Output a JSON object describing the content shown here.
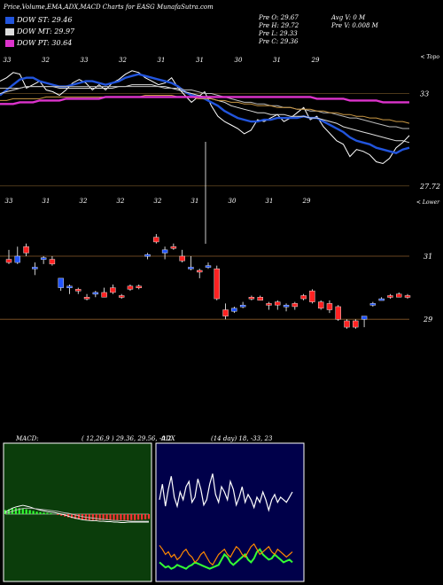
{
  "header": {
    "title": "Price,Volume,EMA,ADX,MACD Charts for EASG MunafaSutra.com",
    "legend": [
      {
        "label": "DOW ST: 29.46",
        "color": "#2255dd"
      },
      {
        "label": "DOW MT: 29.97",
        "color": "#dddddd"
      },
      {
        "label": "DOW PT: 30.64",
        "color": "#dd33cc"
      }
    ],
    "ohlc": {
      "open": "Pre  O: 29.67",
      "high": "Pre  H: 29.72",
      "low": "Pre  L: 29.33",
      "close": "Pre  C: 29.36"
    },
    "avg_vol": "Avg V: 0  M",
    "pre_vol": "Pre  V: 0.008  M"
  },
  "chart_data": [
    {
      "type": "line",
      "name": "ema-panel",
      "corner_label": "< Topo",
      "top_labels": [
        "33",
        "32",
        "33",
        "32",
        "31",
        "31",
        "30",
        "31",
        "29"
      ],
      "price_labels": [
        {
          "text": "33",
          "value": 33
        },
        {
          "text": "27.72",
          "value": 27.72
        }
      ],
      "bottom_labels": [
        "33",
        "31",
        "32",
        "32",
        "32",
        "31",
        "30",
        "31",
        "29"
      ],
      "ylim": [
        26.8,
        35.2
      ],
      "series": [
        {
          "name": "",
          "color": "#ffffff",
          "values": [
            33.7,
            33.9,
            34.2,
            34.1,
            33.3,
            33.5,
            33.7,
            33.2,
            33.1,
            32.9,
            33.2,
            33.6,
            33.8,
            33.6,
            33.2,
            33.5,
            33.2,
            33.6,
            33.8,
            34.1,
            34.3,
            34.2,
            33.9,
            33.7,
            33.5,
            33.6,
            33.9,
            33.3,
            32.9,
            32.5,
            32.8,
            33.1,
            32.3,
            31.7,
            31.4,
            31.2,
            31.0,
            30.7,
            30.9,
            31.5,
            31.4,
            31.6,
            31.8,
            31.4,
            31.6,
            31.9,
            32.2,
            31.5,
            31.7,
            31.1,
            30.7,
            30.3,
            30.1,
            29.4,
            29.8,
            29.7,
            29.5,
            29.1,
            29.0,
            29.3,
            29.9,
            30.2,
            30.6
          ]
        },
        {
          "name": "",
          "color": "#2255dd",
          "values": [
            32.9,
            33.2,
            33.5,
            33.8,
            33.9,
            33.9,
            33.7,
            33.6,
            33.5,
            33.4,
            33.4,
            33.5,
            33.6,
            33.7,
            33.7,
            33.6,
            33.5,
            33.6,
            33.7,
            33.9,
            34.0,
            34.1,
            34.0,
            33.9,
            33.8,
            33.7,
            33.6,
            33.4,
            33.1,
            32.9,
            32.8,
            32.7,
            32.5,
            32.3,
            32.0,
            31.8,
            31.6,
            31.5,
            31.4,
            31.4,
            31.5,
            31.5,
            31.6,
            31.6,
            31.6,
            31.6,
            31.7,
            31.6,
            31.6,
            31.4,
            31.2,
            31.0,
            30.8,
            30.5,
            30.3,
            30.2,
            30.1,
            29.9,
            29.8,
            29.7,
            29.6,
            29.8,
            29.9
          ]
        },
        {
          "name": "",
          "color": "#dddddd",
          "values": [
            33.0,
            33.1,
            33.2,
            33.3,
            33.4,
            33.4,
            33.4,
            33.4,
            33.4,
            33.3,
            33.3,
            33.3,
            33.3,
            33.3,
            33.3,
            33.3,
            33.3,
            33.3,
            33.4,
            33.4,
            33.5,
            33.5,
            33.5,
            33.5,
            33.4,
            33.4,
            33.3,
            33.2,
            33.1,
            33.0,
            32.9,
            32.8,
            32.7,
            32.6,
            32.5,
            32.3,
            32.2,
            32.1,
            32.0,
            31.9,
            31.9,
            31.8,
            31.8,
            31.8,
            31.7,
            31.7,
            31.7,
            31.6,
            31.6,
            31.5,
            31.4,
            31.3,
            31.1,
            31.0,
            30.9,
            30.8,
            30.7,
            30.6,
            30.5,
            30.4,
            30.3,
            30.3,
            30.2
          ]
        },
        {
          "name": "",
          "color": "#bbbbbb",
          "values": [
            33.3,
            33.3,
            33.3,
            33.3,
            33.4,
            33.4,
            33.4,
            33.4,
            33.4,
            33.4,
            33.4,
            33.4,
            33.4,
            33.4,
            33.4,
            33.4,
            33.4,
            33.4,
            33.4,
            33.4,
            33.4,
            33.4,
            33.4,
            33.4,
            33.4,
            33.3,
            33.3,
            33.3,
            33.2,
            33.2,
            33.1,
            33.0,
            33.0,
            32.9,
            32.8,
            32.7,
            32.6,
            32.5,
            32.5,
            32.4,
            32.4,
            32.3,
            32.3,
            32.2,
            32.2,
            32.1,
            32.1,
            32.0,
            32.0,
            31.9,
            31.9,
            31.8,
            31.7,
            31.6,
            31.6,
            31.5,
            31.4,
            31.3,
            31.2,
            31.1,
            31.1,
            31.0,
            31.0
          ]
        },
        {
          "name": "",
          "color": "#cc9944",
          "values": [
            32.6,
            32.6,
            32.7,
            32.7,
            32.7,
            32.7,
            32.7,
            32.8,
            32.8,
            32.8,
            32.8,
            32.8,
            32.8,
            32.8,
            32.8,
            32.8,
            32.8,
            32.8,
            32.8,
            32.8,
            32.8,
            32.8,
            32.9,
            32.9,
            32.9,
            32.9,
            32.9,
            32.8,
            32.8,
            32.8,
            32.7,
            32.7,
            32.7,
            32.6,
            32.6,
            32.5,
            32.5,
            32.4,
            32.4,
            32.3,
            32.3,
            32.3,
            32.2,
            32.2,
            32.2,
            32.1,
            32.1,
            32.1,
            32.0,
            32.0,
            31.9,
            31.9,
            31.8,
            31.8,
            31.7,
            31.7,
            31.6,
            31.6,
            31.5,
            31.5,
            31.4,
            31.4,
            31.3
          ]
        },
        {
          "name": "",
          "color": "#dd33cc",
          "values": [
            32.4,
            32.4,
            32.4,
            32.5,
            32.5,
            32.5,
            32.6,
            32.6,
            32.6,
            32.6,
            32.7,
            32.7,
            32.7,
            32.7,
            32.7,
            32.7,
            32.8,
            32.8,
            32.8,
            32.8,
            32.8,
            32.8,
            32.8,
            32.8,
            32.8,
            32.8,
            32.8,
            32.8,
            32.8,
            32.8,
            32.8,
            32.8,
            32.8,
            32.8,
            32.8,
            32.8,
            32.8,
            32.8,
            32.8,
            32.8,
            32.8,
            32.8,
            32.8,
            32.8,
            32.8,
            32.8,
            32.8,
            32.8,
            32.7,
            32.7,
            32.7,
            32.7,
            32.7,
            32.6,
            32.6,
            32.6,
            32.6,
            32.6,
            32.5,
            32.5,
            32.5,
            32.5,
            32.5
          ]
        }
      ]
    },
    {
      "type": "candlestick",
      "name": "price-panel",
      "corner_label": "< Lower",
      "price_labels": [
        {
          "text": "31",
          "value": 31
        },
        {
          "text": "29",
          "value": 29
        }
      ],
      "ylim": [
        28.5,
        32.6
      ],
      "candles": [
        {
          "o": 30.9,
          "h": 31.2,
          "l": 30.75,
          "c": 30.8
        },
        {
          "o": 30.8,
          "h": 31.3,
          "l": 30.75,
          "c": 31.0
        },
        {
          "o": 31.3,
          "h": 31.4,
          "l": 31.0,
          "c": 31.1
        },
        {
          "o": 30.6,
          "h": 30.8,
          "l": 30.4,
          "c": 30.65
        },
        {
          "o": 30.9,
          "h": 31.0,
          "l": 30.75,
          "c": 30.95
        },
        {
          "o": 30.9,
          "h": 31.0,
          "l": 30.7,
          "c": 30.75
        },
        {
          "o": 30.0,
          "h": 30.3,
          "l": 29.9,
          "c": 30.3
        },
        {
          "o": 30.0,
          "h": 30.1,
          "l": 29.8,
          "c": 30.05
        },
        {
          "o": 29.95,
          "h": 30.0,
          "l": 29.8,
          "c": 29.9
        },
        {
          "o": 29.7,
          "h": 29.8,
          "l": 29.6,
          "c": 29.65
        },
        {
          "o": 29.8,
          "h": 29.9,
          "l": 29.7,
          "c": 29.85
        },
        {
          "o": 29.85,
          "h": 30.0,
          "l": 29.7,
          "c": 29.7
        },
        {
          "o": 30.0,
          "h": 30.1,
          "l": 29.8,
          "c": 29.85
        },
        {
          "o": 29.75,
          "h": 29.8,
          "l": 29.65,
          "c": 29.7
        },
        {
          "o": 30.05,
          "h": 30.1,
          "l": 29.9,
          "c": 29.95
        },
        {
          "o": 30.05,
          "h": 30.1,
          "l": 29.95,
          "c": 30.0
        },
        {
          "o": 31.0,
          "h": 31.1,
          "l": 30.9,
          "c": 31.05
        },
        {
          "o": 31.6,
          "h": 31.7,
          "l": 31.4,
          "c": 31.45
        },
        {
          "o": 31.1,
          "h": 31.3,
          "l": 30.9,
          "c": 31.2
        },
        {
          "o": 31.3,
          "h": 31.4,
          "l": 31.2,
          "c": 31.25
        },
        {
          "o": 31.0,
          "h": 31.2,
          "l": 30.8,
          "c": 30.85
        },
        {
          "o": 30.6,
          "h": 31.0,
          "l": 30.55,
          "c": 30.65
        },
        {
          "o": 30.55,
          "h": 30.6,
          "l": 30.3,
          "c": 30.5
        },
        {
          "o": 30.7,
          "h": 30.8,
          "l": 30.6,
          "c": 30.7
        },
        {
          "o": 30.6,
          "h": 30.7,
          "l": 29.6,
          "c": 29.65
        },
        {
          "o": 29.3,
          "h": 29.5,
          "l": 29.0,
          "c": 29.1
        },
        {
          "o": 29.25,
          "h": 29.4,
          "l": 29.2,
          "c": 29.35
        },
        {
          "o": 29.4,
          "h": 29.55,
          "l": 29.35,
          "c": 29.45
        },
        {
          "o": 29.7,
          "h": 29.75,
          "l": 29.6,
          "c": 29.65
        },
        {
          "o": 29.7,
          "h": 29.75,
          "l": 29.6,
          "c": 29.6
        },
        {
          "o": 29.5,
          "h": 29.55,
          "l": 29.3,
          "c": 29.45
        },
        {
          "o": 29.55,
          "h": 29.6,
          "l": 29.3,
          "c": 29.45
        },
        {
          "o": 29.4,
          "h": 29.5,
          "l": 29.25,
          "c": 29.45
        },
        {
          "o": 29.5,
          "h": 29.55,
          "l": 29.3,
          "c": 29.4
        },
        {
          "o": 29.75,
          "h": 29.8,
          "l": 29.6,
          "c": 29.65
        },
        {
          "o": 29.9,
          "h": 29.95,
          "l": 29.5,
          "c": 29.55
        },
        {
          "o": 29.55,
          "h": 29.6,
          "l": 29.3,
          "c": 29.35
        },
        {
          "o": 29.5,
          "h": 29.6,
          "l": 29.2,
          "c": 29.3
        },
        {
          "o": 29.4,
          "h": 29.45,
          "l": 28.95,
          "c": 29.0
        },
        {
          "o": 28.95,
          "h": 29.0,
          "l": 28.7,
          "c": 28.75
        },
        {
          "o": 28.95,
          "h": 29.0,
          "l": 28.7,
          "c": 28.75
        },
        {
          "o": 29.0,
          "h": 29.1,
          "l": 28.75,
          "c": 29.1
        },
        {
          "o": 29.45,
          "h": 29.55,
          "l": 29.4,
          "c": 29.5
        },
        {
          "o": 29.65,
          "h": 29.7,
          "l": 29.6,
          "c": 29.65
        },
        {
          "o": 29.75,
          "h": 29.8,
          "l": 29.65,
          "c": 29.7
        },
        {
          "o": 29.8,
          "h": 29.85,
          "l": 29.7,
          "c": 29.7
        },
        {
          "o": 29.75,
          "h": 29.8,
          "l": 29.65,
          "c": 29.7
        }
      ]
    },
    {
      "type": "bar",
      "name": "macd-panel",
      "title": "MACD:",
      "params": "( 12,26,9 ) 29.36,  29.56,  -0.2",
      "ylim": [
        -1,
        1
      ],
      "histogram": [
        0.1,
        0.12,
        0.14,
        0.15,
        0.15,
        0.14,
        0.12,
        0.1,
        0.08,
        0.06,
        0.05,
        0.04,
        0.03,
        0.02,
        0.0,
        -0.02,
        -0.04,
        -0.06,
        -0.08,
        -0.1,
        -0.12,
        -0.13,
        -0.14,
        -0.15,
        -0.15,
        -0.15,
        -0.15,
        -0.15,
        -0.15,
        -0.15,
        -0.15,
        -0.15,
        -0.15,
        -0.15,
        -0.15,
        -0.15,
        -0.15,
        -0.15,
        -0.14,
        -0.14,
        -0.13,
        -0.12
      ],
      "series": [
        {
          "name": "",
          "color": "#ffffff",
          "values": [
            0.05,
            0.1,
            0.15,
            0.18,
            0.2,
            0.22,
            0.2,
            0.18,
            0.15,
            0.12,
            0.1,
            0.08,
            0.06,
            0.05,
            0.04,
            0.02,
            0.0,
            -0.02,
            -0.05,
            -0.08,
            -0.1,
            -0.12,
            -0.14,
            -0.15,
            -0.16,
            -0.17,
            -0.17,
            -0.18,
            -0.18,
            -0.19,
            -0.19,
            -0.2,
            -0.2,
            -0.21,
            -0.21,
            -0.2,
            -0.2,
            -0.2,
            -0.2,
            -0.2,
            -0.2,
            -0.2
          ]
        },
        {
          "name": "",
          "color": "#bbbbbb",
          "values": [
            0.02,
            0.04,
            0.07,
            0.1,
            0.12,
            0.14,
            0.15,
            0.15,
            0.14,
            0.13,
            0.12,
            0.11,
            0.1,
            0.09,
            0.08,
            0.07,
            0.05,
            0.03,
            0.02,
            0.0,
            -0.02,
            -0.04,
            -0.06,
            -0.08,
            -0.09,
            -0.1,
            -0.11,
            -0.12,
            -0.13,
            -0.14,
            -0.15,
            -0.16,
            -0.16,
            -0.17,
            -0.17,
            -0.17,
            -0.18,
            -0.18,
            -0.18,
            -0.18,
            -0.18,
            -0.18
          ]
        }
      ]
    },
    {
      "type": "line",
      "name": "adx-panel",
      "title": "ADX",
      "params": "(14  day) 18,  -33,  23",
      "ylim": [
        0,
        100
      ],
      "series": [
        {
          "name": "",
          "color": "#ffffff",
          "values": [
            60,
            72,
            55,
            68,
            78,
            62,
            55,
            66,
            60,
            70,
            74,
            58,
            62,
            76,
            68,
            56,
            60,
            72,
            80,
            64,
            58,
            70,
            66,
            60,
            74,
            68,
            56,
            62,
            70,
            58,
            64,
            60,
            54,
            62,
            58,
            66,
            60,
            52,
            60,
            64,
            58,
            62,
            60,
            58,
            62,
            66
          ]
        },
        {
          "name": "",
          "color": "#33ff33",
          "values": [
            12,
            10,
            8,
            9,
            7,
            8,
            10,
            9,
            8,
            7,
            9,
            10,
            12,
            11,
            10,
            9,
            8,
            7,
            8,
            9,
            10,
            14,
            18,
            16,
            12,
            10,
            12,
            14,
            16,
            18,
            14,
            12,
            15,
            20,
            22,
            18,
            16,
            14,
            15,
            18,
            16,
            14,
            12,
            13,
            14,
            12
          ]
        },
        {
          "name": "",
          "color": "#ff8800",
          "values": [
            25,
            22,
            18,
            20,
            16,
            18,
            14,
            16,
            20,
            22,
            18,
            16,
            12,
            14,
            18,
            20,
            16,
            12,
            10,
            14,
            18,
            20,
            22,
            18,
            16,
            20,
            24,
            22,
            18,
            16,
            20,
            24,
            26,
            22,
            18,
            20,
            22,
            24,
            20,
            18,
            22,
            20,
            18,
            16,
            18,
            20
          ]
        }
      ]
    }
  ]
}
